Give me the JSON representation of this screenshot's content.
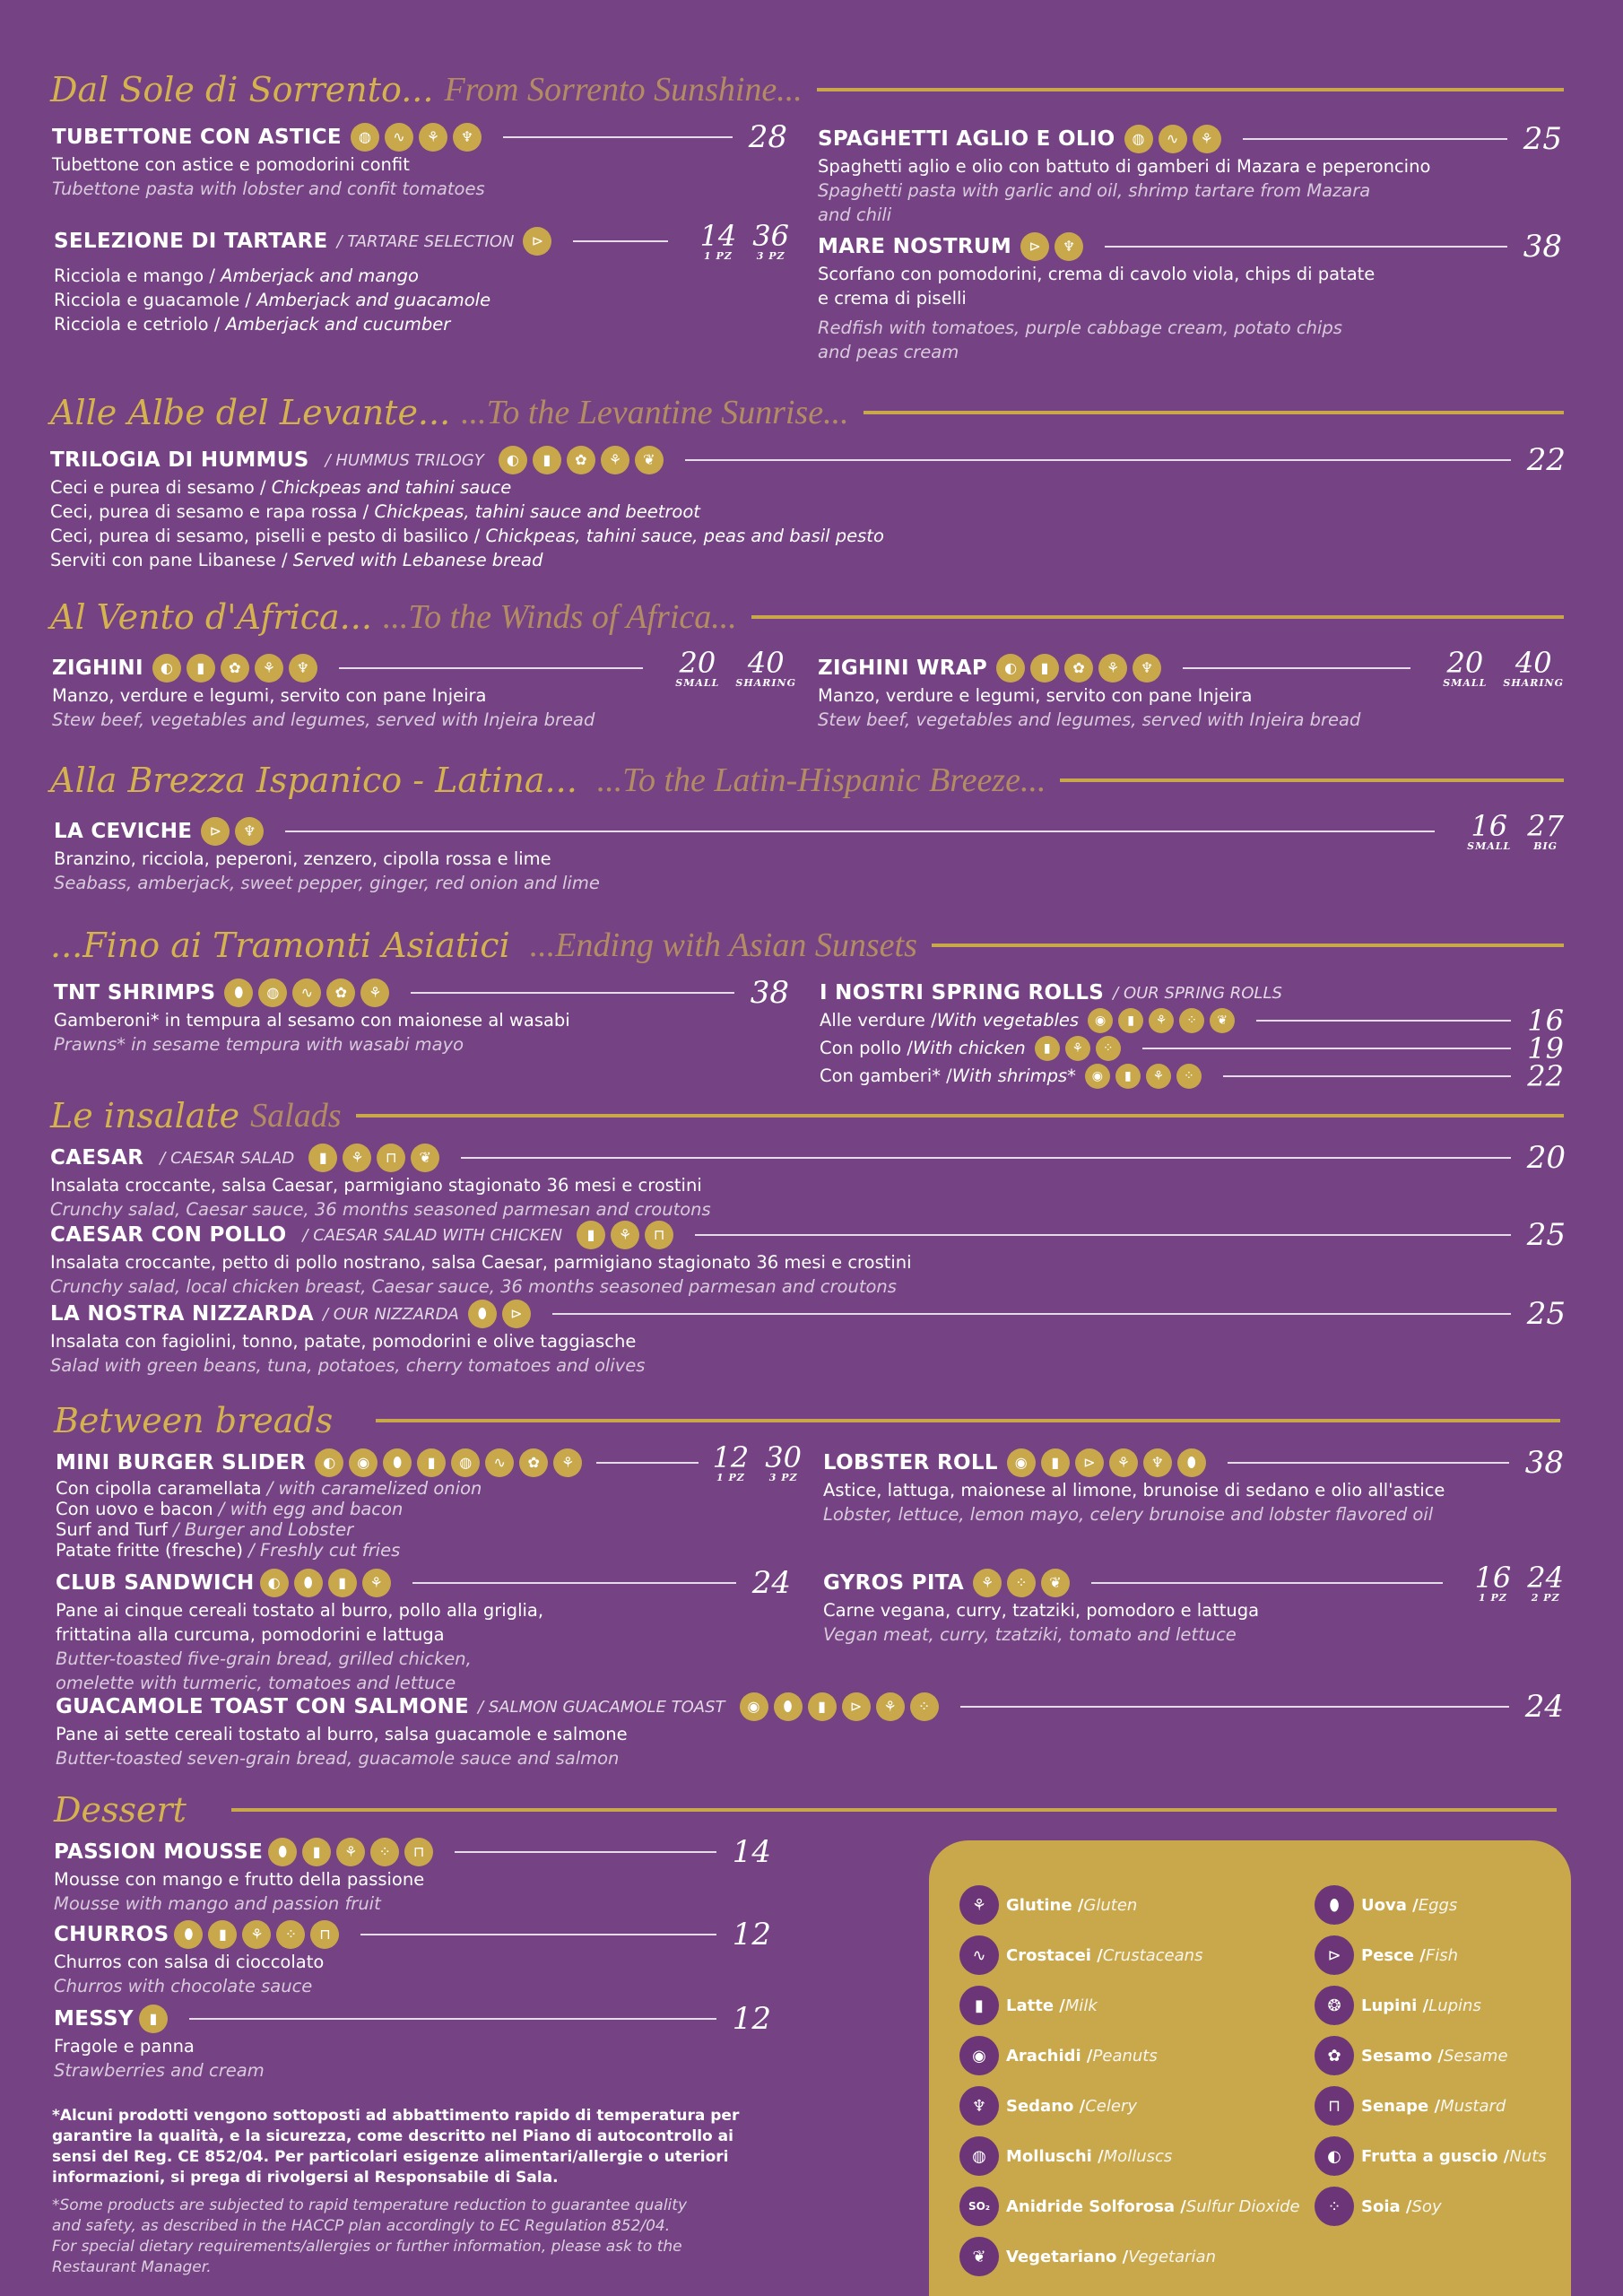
{
  "icons": {
    "gluten": "⚘",
    "crustaceans": "∿",
    "milk": "▮",
    "peanuts": "◉",
    "celery": "♆",
    "molluscs": "◍",
    "so2": "SO₂",
    "vegetarian": "❦",
    "eggs": "⬮",
    "fish": "⊳",
    "lupins": "❂",
    "sesame": "✿",
    "mustard": "⊓",
    "nuts": "◐",
    "soy": "⁘"
  },
  "colors": {
    "background": "#754283",
    "gold": "#c9a84c",
    "legend_circle": "#6b3578"
  },
  "sections": {
    "sorrento": {
      "it": "Dal Sole di Sorrento...",
      "en": "From Sorrento Sunshine..."
    },
    "levante": {
      "it": "Alle Albe del Levante...",
      "en": "...To the Levantine Sunrise..."
    },
    "africa": {
      "it": "Al Vento d'Africa...",
      "en": "...To the Winds of Africa..."
    },
    "latina": {
      "it": "Alla Brezza Ispanico - Latina...",
      "en": "...To the Latin-Hispanic Breeze..."
    },
    "asia": {
      "it": "...Fino ai Tramonti Asiatici",
      "en": "...Ending with Asian Sunsets"
    },
    "insalate": {
      "it": "Le insalate",
      "en": "Salads"
    },
    "breads": {
      "it": "Between breads",
      "en": ""
    },
    "dessert": {
      "it": "Dessert",
      "en": ""
    }
  },
  "items": {
    "tubettone": {
      "name": "TUBETTONE CON ASTICE",
      "price": "28",
      "it": "Tubettone con astice e pomodorini confit",
      "en": "Tubettone pasta with lobster and confit tomatoes"
    },
    "spaghetti": {
      "name": "SPAGHETTI AGLIO E OLIO",
      "price": "25",
      "it": "Spaghetti aglio e olio con battuto di gamberi di Mazara e peperoncino",
      "en1": "Spaghetti pasta with garlic and oil, shrimp tartare from Mazara",
      "en2": "and chili"
    },
    "tartare": {
      "name": "SELEZIONE DI TARTARE",
      "sub": "/ TARTARE SELECTION",
      "p1": "14",
      "l1": "1 PZ",
      "p2": "36",
      "l2": "3 PZ",
      "r1it": "Ricciola e mango / ",
      "r1en": "Amberjack and mango",
      "r2it": "Ricciola e guacamole / ",
      "r2en": "Amberjack and guacamole",
      "r3it": "Ricciola e cetriolo / ",
      "r3en": "Amberjack and cucumber"
    },
    "mare": {
      "name": "MARE NOSTRUM",
      "price": "38",
      "it1": "Scorfano con pomodorini, crema di cavolo viola, chips di patate",
      "it2": "e crema di piselli",
      "en1": "Redfish with tomatoes, purple cabbage cream, potato chips",
      "en2": "and peas cream"
    },
    "hummus": {
      "name": "TRILOGIA DI HUMMUS",
      "sub": "/ HUMMUS TRILOGY",
      "price": "22",
      "r1it": "Ceci e purea di sesamo / ",
      "r1en": "Chickpeas and tahini sauce",
      "r2it": "Ceci, purea di sesamo e rapa rossa / ",
      "r2en": "Chickpeas, tahini sauce and beetroot",
      "r3it": "Ceci, purea di sesamo, piselli e pesto di basilico / ",
      "r3en": "Chickpeas, tahini sauce, peas and basil pesto",
      "r4it": "Serviti con pane Libanese / ",
      "r4en": "Served with Lebanese bread"
    },
    "zighini": {
      "name": "ZIGHINI",
      "p1": "20",
      "l1": "SMALL",
      "p2": "40",
      "l2": "SHARING",
      "it": "Manzo, verdure e legumi, servito con pane Injeira",
      "en": "Stew beef, vegetables and legumes, served with Injeira bread"
    },
    "zighini_wrap": {
      "name": "ZIGHINI WRAP",
      "p1": "20",
      "l1": "SMALL",
      "p2": "40",
      "l2": "SHARING",
      "it": "Manzo, verdure e legumi, servito con pane Injeira",
      "en": "Stew beef, vegetables and legumes, served with Injeira bread"
    },
    "ceviche": {
      "name": "LA CEVICHE",
      "p1": "16",
      "l1": "SMALL",
      "p2": "27",
      "l2": "BIG",
      "it": "Branzino, ricciola, peperoni, zenzero, cipolla rossa e lime",
      "en": "Seabass, amberjack, sweet pepper, ginger, red onion and lime"
    },
    "tnt": {
      "name": "TNT SHRIMPS",
      "price": "38",
      "it": "Gamberoni* in tempura al sesamo con maionese al wasabi",
      "en": "Prawns* in sesame tempura with wasabi mayo"
    },
    "spring": {
      "name": "I NOSTRI SPRING ROLLS",
      "sub": "/ OUR SPRING ROLLS",
      "r1it": "Alle verdure / ",
      "r1en": "With vegetables",
      "p1": "16",
      "r2it": "Con pollo / ",
      "r2en": "With chicken",
      "p2": "19",
      "r3it": "Con gamberi* / ",
      "r3en": "With shrimps*",
      "p3": "22"
    },
    "caesar": {
      "name": "CAESAR",
      "sub": "/ CAESAR SALAD",
      "price": "20",
      "it": "Insalata croccante, salsa Caesar, parmigiano stagionato 36 mesi e crostini",
      "en": "Crunchy salad, Caesar sauce, 36 months seasoned parmesan and croutons"
    },
    "caesar_pollo": {
      "name": "CAESAR CON POLLO",
      "sub": "/ CAESAR SALAD WITH CHICKEN",
      "price": "25",
      "it": "Insalata croccante, petto di pollo nostrano, salsa Caesar, parmigiano stagionato 36 mesi e crostini",
      "en": "Crunchy salad, local chicken breast, Caesar sauce, 36 months seasoned parmesan and croutons"
    },
    "nizzarda": {
      "name": "LA NOSTRA NIZZARDA",
      "sub": "/ OUR NIZZARDA",
      "price": "25",
      "it": "Insalata con fagiolini, tonno, patate, pomodorini e olive taggiasche",
      "en": "Salad with green beans, tuna, potatoes, cherry tomatoes and olives"
    },
    "burger": {
      "name": "MINI BURGER SLIDER",
      "p1": "12",
      "l1": "1 PZ",
      "p2": "30",
      "l2": "3 PZ",
      "r1it": "Con cipolla caramellata ",
      "r1en": "/ with caramelized onion",
      "r2it": "Con uovo e bacon ",
      "r2en": "/ with egg and bacon",
      "r3it": "Surf and Turf ",
      "r3en": "/ Burger and Lobster",
      "r4it": "Patate fritte (fresche) ",
      "r4en": "/ Freshly cut fries"
    },
    "lobster": {
      "name": "LOBSTER ROLL",
      "price": "38",
      "it": "Astice, lattuga, maionese al limone, brunoise di sedano e olio all'astice",
      "en": "Lobster, lettuce, lemon mayo, celery brunoise and lobster flavored oil"
    },
    "club": {
      "name": "CLUB SANDWICH",
      "price": "24",
      "it1": "Pane ai cinque cereali tostato al burro, pollo alla griglia,",
      "it2": "frittatina alla curcuma, pomodorini e lattuga",
      "en1": "Butter-toasted five-grain bread, grilled chicken,",
      "en2": "omelette with turmeric, tomatoes and lettuce"
    },
    "gyros": {
      "name": "GYROS PITA",
      "p1": "16",
      "l1": "1 PZ",
      "p2": "24",
      "l2": "2 PZ",
      "it": "Carne vegana, curry, tzatziki, pomodoro e lattuga",
      "en": "Vegan meat, curry, tzatziki, tomato and lettuce"
    },
    "guacamole": {
      "name": "GUACAMOLE TOAST CON SALMONE",
      "sub": "/ SALMON GUACAMOLE TOAST",
      "price": "24",
      "it": "Pane ai sette cereali tostato al burro, salsa guacamole e salmone",
      "en": "Butter-toasted seven-grain bread, guacamole sauce and salmon"
    },
    "passion": {
      "name": "PASSION MOUSSE",
      "price": "14",
      "it": "Mousse con mango e frutto della passione",
      "en": "Mousse with mango and passion fruit"
    },
    "churros": {
      "name": "CHURROS",
      "price": "12",
      "it": "Churros con salsa di cioccolato",
      "en": "Churros with chocolate sauce"
    },
    "messy": {
      "name": "MESSY",
      "price": "12",
      "it": "Fragole e panna",
      "en": "Strawberries and cream"
    }
  },
  "notes": {
    "it1": "*Alcuni prodotti vengono sottoposti ad abbattimento rapido di temperatura per",
    "it2": "garantire la qualità, e la sicurezza, come descritto nel Piano di autocontrollo ai",
    "it3": "sensi del Reg. CE 852/04. Per particolari esigenze alimentari/allergie o uteriori",
    "it4": "informazioni, si prega di rivolgersi al Responsabile di Sala.",
    "en1": "*Some products are subjected to rapid temperature reduction to guarantee quality",
    "en2": "and safety, as described in the HACCP plan accordingly to EC Regulation 852/04.",
    "en3": "For special dietary requirements/allergies or further information, please ask to the",
    "en4": "Restaurant Manager."
  },
  "legend": [
    {
      "it": "Glutine / ",
      "en": "Gluten",
      "icon": "gluten-icon"
    },
    {
      "it": "Uova / ",
      "en": "Eggs",
      "icon": "egg-icon"
    },
    {
      "it": "Crostacei / ",
      "en": "Crustaceans",
      "icon": "crustacean-icon"
    },
    {
      "it": "Pesce / ",
      "en": "Fish",
      "icon": "fish-icon"
    },
    {
      "it": "Latte / ",
      "en": "Milk",
      "icon": "milk-icon"
    },
    {
      "it": "Lupini / ",
      "en": "Lupins",
      "icon": "lupin-icon"
    },
    {
      "it": "Arachidi / ",
      "en": "Peanuts",
      "icon": "peanut-icon"
    },
    {
      "it": "Sesamo / ",
      "en": "Sesame",
      "icon": "sesame-icon"
    },
    {
      "it": "Sedano / ",
      "en": "Celery",
      "icon": "celery-icon"
    },
    {
      "it": "Senape / ",
      "en": "Mustard",
      "icon": "mustard-icon"
    },
    {
      "it": "Molluschi / ",
      "en": "Molluscs",
      "icon": "mollusc-icon"
    },
    {
      "it": "Frutta a guscio / ",
      "en": "Nuts",
      "icon": "nut-icon"
    },
    {
      "it": "Anidride Solforosa / ",
      "en": "Sulfur Dioxide",
      "icon": "sulfur-dioxide-icon"
    },
    {
      "it": "Soia / ",
      "en": "Soy",
      "icon": "soy-icon"
    },
    {
      "it": "Vegetariano / ",
      "en": "Vegetarian",
      "icon": "vegetarian-icon"
    }
  ]
}
